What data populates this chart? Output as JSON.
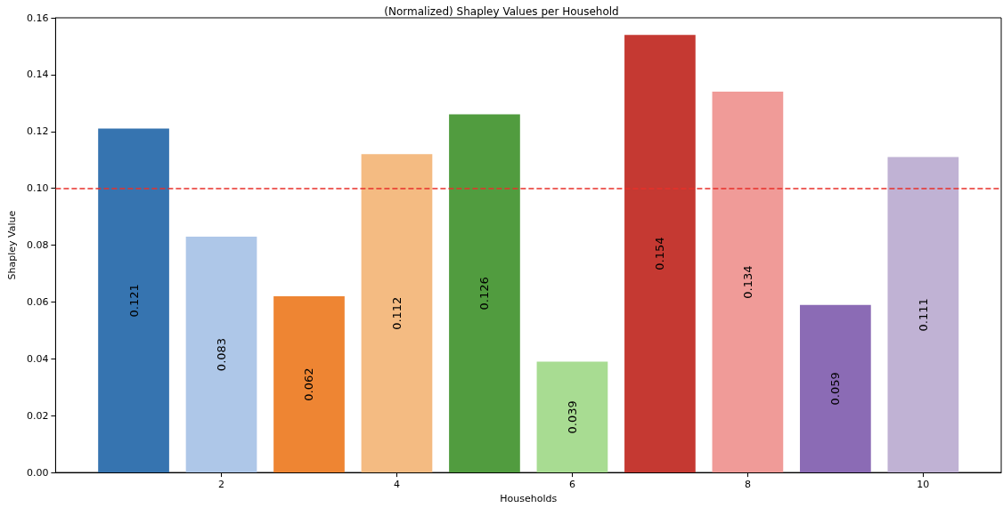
{
  "chart_data": {
    "type": "bar",
    "title": "(Normalized) Shapley Values per Household",
    "xlabel": "Households",
    "ylabel": "Shapley Value",
    "x": [
      1,
      2,
      3,
      4,
      5,
      6,
      7,
      8,
      9,
      10
    ],
    "values": [
      0.121,
      0.083,
      0.062,
      0.112,
      0.126,
      0.039,
      0.154,
      0.134,
      0.059,
      0.111
    ],
    "colors": [
      "#3674b0",
      "#aec7e8",
      "#ee8533",
      "#f4bb82",
      "#519c3f",
      "#a8dc92",
      "#c53932",
      "#f09b98",
      "#8b6bb5",
      "#c0b2d4"
    ],
    "xlim": [
      0.11,
      10.89
    ],
    "xticks": [
      2,
      4,
      6,
      8,
      10
    ],
    "ylim": [
      0,
      0.16
    ],
    "yticks": [
      {
        "value": 0,
        "label": "0.00"
      },
      0.02,
      0.04,
      0.06,
      0.08,
      {
        "value": 0.1,
        "label": "0.10"
      },
      0.12,
      0.14,
      0.16
    ],
    "data_labels": true,
    "grid": false,
    "ref_lines": [
      {
        "axis": "y",
        "value": 0.1,
        "color": "#e8302a",
        "line_style": "dashed"
      }
    ]
  }
}
